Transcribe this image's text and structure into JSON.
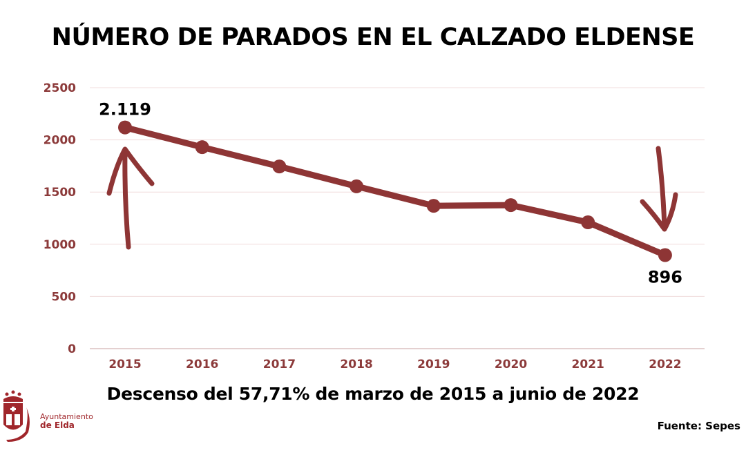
{
  "chart_data": {
    "type": "line",
    "title": "NÚMERO DE PARADOS EN EL CALZADO ELDENSE",
    "subtitle": "Descenso del 57,71% de marzo de 2015 a junio de 2022",
    "source": "Fuente: Sepes",
    "categories": [
      "2015",
      "2016",
      "2017",
      "2018",
      "2019",
      "2020",
      "2021",
      "2022"
    ],
    "values": [
      2119,
      1930,
      1745,
      1555,
      1368,
      1375,
      1210,
      896
    ],
    "ylim": [
      0,
      2500
    ],
    "yticks": [
      0,
      500,
      1000,
      1500,
      2000,
      2500
    ],
    "grid": true,
    "data_labels": [
      {
        "category": "2015",
        "text": "2.119"
      },
      {
        "category": "2022",
        "text": "896"
      }
    ],
    "annotations": [
      "arrow-up at 2015",
      "arrow-down at 2022"
    ],
    "colors": {
      "line": "#8e3535",
      "axis_text": "#8c3a3a",
      "grid": "#f0dcdc"
    }
  },
  "logo": {
    "line1": "Ayuntamiento",
    "line2": "de Elda",
    "color": "#a0262b"
  }
}
